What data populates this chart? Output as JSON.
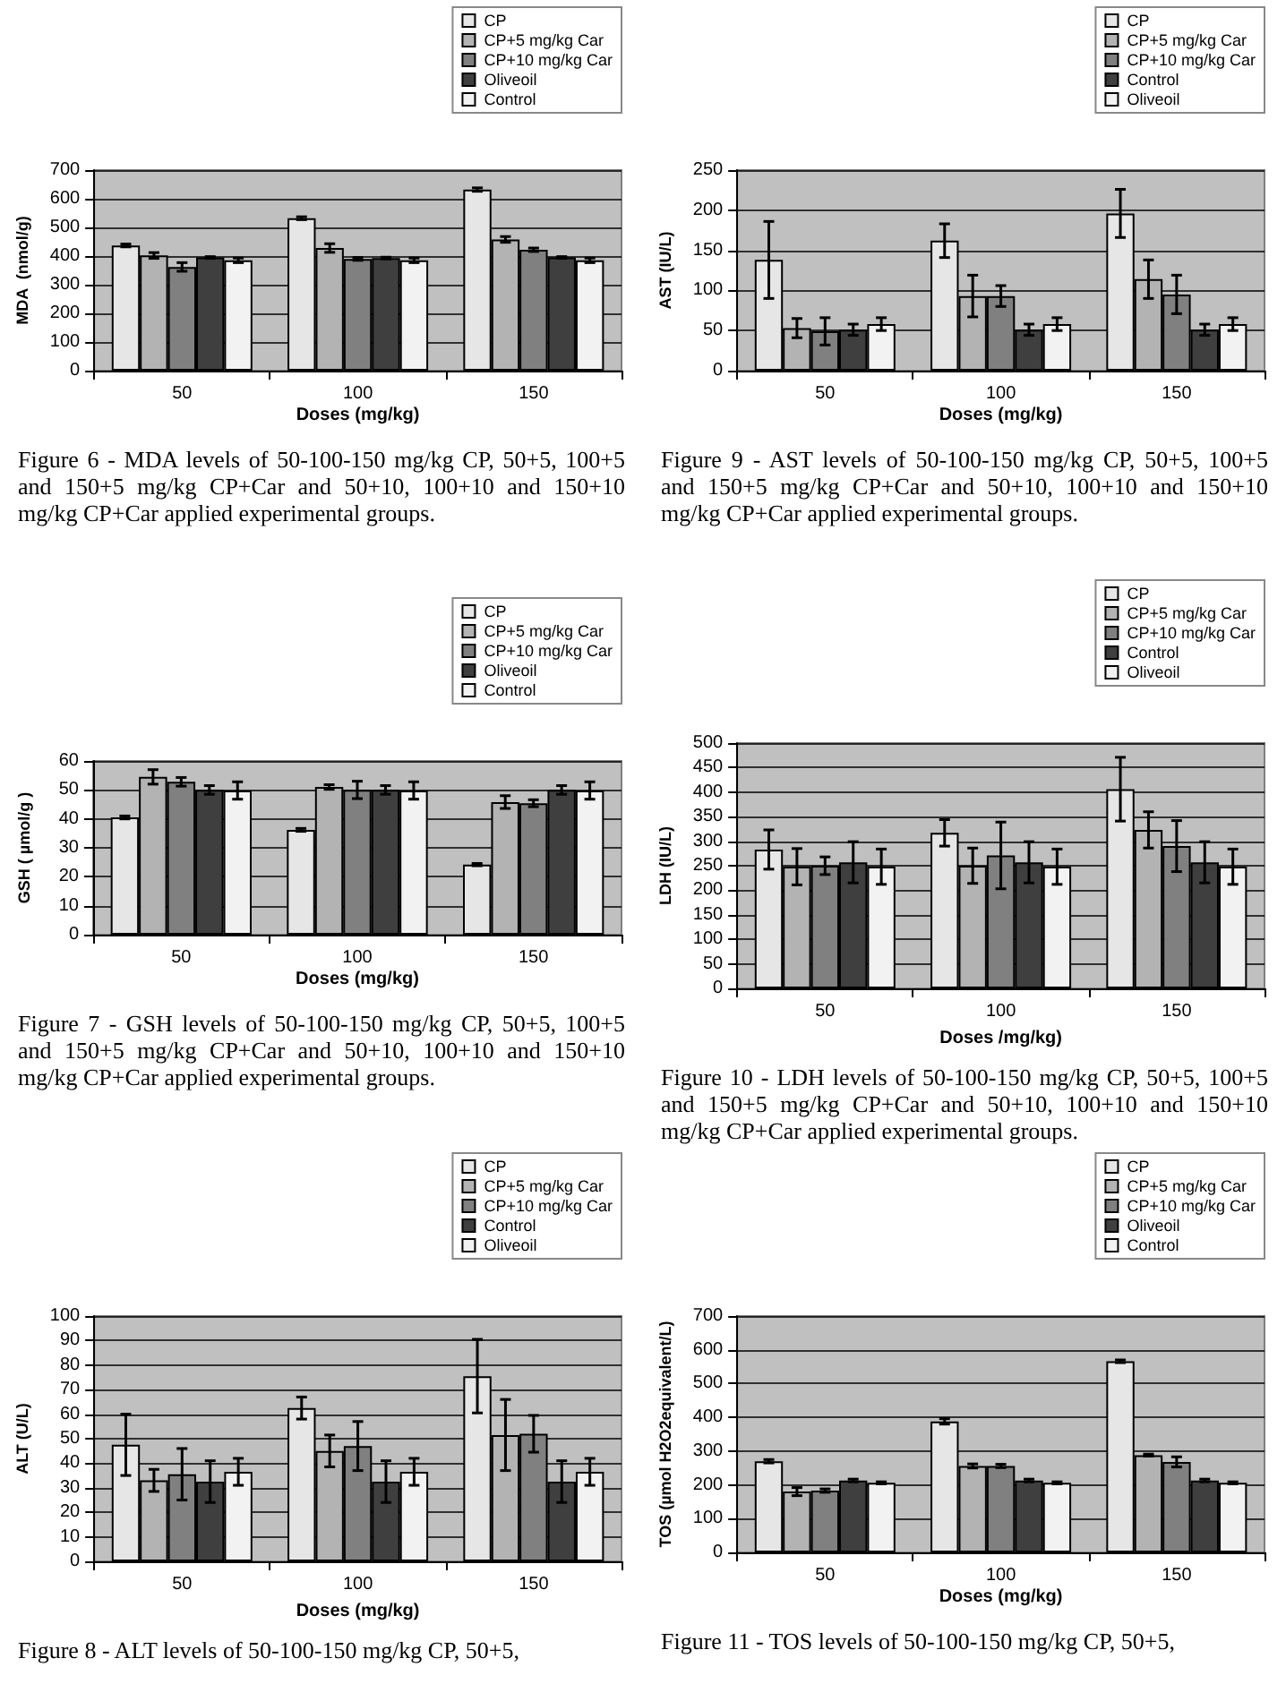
{
  "chart_data": [
    {
      "type": "bar",
      "categories": [
        "50",
        "100",
        "150"
      ],
      "xlabel": "Doses (mg/kg)",
      "ylabel": "MDA  (nmol/g)",
      "ylim": [
        0,
        700
      ],
      "yticks": [
        0,
        100,
        200,
        300,
        400,
        500,
        600,
        700
      ],
      "grid": "y",
      "legend": "top right",
      "annotations": [
        "Figure 6 - MDA levels of 50-100-150 mg/kg CP, 50+5, 100+5 and 150+5 mg/kg CP+Car and 50+10, 100+10 and 150+10 mg/kg CP+Car applied  experimental groups."
      ],
      "series": [
        {
          "name": "CP",
          "color": "#e6e6e6",
          "values": [
            437,
            532,
            632
          ],
          "errors": [
            5,
            5,
            6
          ]
        },
        {
          "name": "CP+5 mg/kg Car",
          "color": "#b3b3b3",
          "values": [
            402,
            428,
            458
          ],
          "errors": [
            10,
            15,
            10
          ]
        },
        {
          "name": "CP+10 mg/kg Car",
          "color": "#808080",
          "values": [
            362,
            390,
            422
          ],
          "errors": [
            15,
            5,
            6
          ]
        },
        {
          "name": "Oliveoil",
          "color": "#3f3f3f",
          "values": [
            395,
            393,
            395
          ],
          "errors": [
            3,
            3,
            3
          ]
        },
        {
          "name": "Control",
          "color": "#f2f2f2",
          "values": [
            385,
            385,
            385
          ],
          "errors": [
            8,
            8,
            8
          ]
        }
      ]
    },
    {
      "type": "bar",
      "categories": [
        "50",
        "100",
        "150"
      ],
      "xlabel": "Doses (mg/kg)",
      "ylabel": "AST (IU/L)",
      "ylim": [
        0,
        250
      ],
      "yticks": [
        0,
        50,
        100,
        150,
        200,
        250
      ],
      "grid": "y",
      "legend": "top right",
      "annotations": [
        "Figure 9 - AST levels of 50-100-150 mg/kg CP, 50+5, 100+5 and 150+5 mg/kg CP+Car and 50+10, 100+10 and 150+10 mg/kg CP+Car applied experimental groups."
      ],
      "series": [
        {
          "name": "CP",
          "color": "#e6e6e6",
          "values": [
            138,
            162,
            196
          ],
          "errors": [
            48,
            21,
            30
          ]
        },
        {
          "name": "CP+5 mg/kg Car",
          "color": "#b3b3b3",
          "values": [
            53,
            93,
            114
          ],
          "errors": [
            12,
            26,
            24
          ]
        },
        {
          "name": "CP+10 mg/kg Car",
          "color": "#808080",
          "values": [
            49,
            93,
            95
          ],
          "errors": [
            17,
            13,
            24
          ]
        },
        {
          "name": "Control",
          "color": "#3f3f3f",
          "values": [
            51,
            51,
            51
          ],
          "errors": [
            7,
            7,
            7
          ]
        },
        {
          "name": "Oliveoil",
          "color": "#f2f2f2",
          "values": [
            58,
            58,
            58
          ],
          "errors": [
            8,
            8,
            8
          ]
        }
      ]
    },
    {
      "type": "bar",
      "categories": [
        "50",
        "100",
        "150"
      ],
      "xlabel": "Doses (mg/kg)",
      "ylabel": "GSH ( µmol/g )",
      "ylim": [
        0,
        60
      ],
      "yticks": [
        0,
        10,
        20,
        30,
        40,
        50,
        60
      ],
      "grid": "y",
      "legend": "top right",
      "annotations": [
        "Figure 7 - GSH levels of 50-100-150 mg/kg CP, 50+5, 100+5 and 150+5 mg/kg CP+Car and 50+10, 100+10 and 150+10 mg/kg CP+Car applied experimental groups."
      ],
      "series": [
        {
          "name": "CP",
          "color": "#e6e6e6",
          "values": [
            40.5,
            36.2,
            24.2
          ],
          "errors": [
            0.5,
            0.5,
            0.4
          ]
        },
        {
          "name": "CP+5 mg/kg Car",
          "color": "#b3b3b3",
          "values": [
            54.5,
            51,
            45.8
          ],
          "errors": [
            2.5,
            0.8,
            2.2
          ]
        },
        {
          "name": "CP+10 mg/kg Car",
          "color": "#808080",
          "values": [
            52.8,
            50,
            45.4
          ],
          "errors": [
            1.5,
            3,
            1.2
          ]
        },
        {
          "name": "Oliveoil",
          "color": "#3f3f3f",
          "values": [
            50,
            50,
            50
          ],
          "errors": [
            1.5,
            1.5,
            1.5
          ]
        },
        {
          "name": "Control",
          "color": "#f2f2f2",
          "values": [
            49.8,
            49.8,
            49.8
          ],
          "errors": [
            3,
            3,
            3
          ]
        }
      ]
    },
    {
      "type": "bar",
      "categories": [
        "50",
        "100",
        "150"
      ],
      "xlabel": "Doses /mg/kg)",
      "ylabel": "LDH (IU/L)",
      "ylim": [
        0,
        500
      ],
      "yticks": [
        0,
        50,
        100,
        150,
        200,
        250,
        300,
        350,
        400,
        450,
        500
      ],
      "grid": "y",
      "legend": "top right",
      "annotations": [
        "Figure  10 - LDH levels of 50-100-150 mg/kg CP, 50+5, 100+5 and 150+5 mg/kg CP+Car and 50+10, 100+10 and 150+10 mg/kg CP+Car applied experimental groups."
      ],
      "series": [
        {
          "name": "CP",
          "color": "#e6e6e6",
          "values": [
            283,
            317,
            406
          ],
          "errors": [
            40,
            27,
            65
          ]
        },
        {
          "name": "CP+5 mg/kg Car",
          "color": "#b3b3b3",
          "values": [
            248,
            250,
            323
          ],
          "errors": [
            37,
            36,
            37
          ]
        },
        {
          "name": "CP+10 mg/kg Car",
          "color": "#808080",
          "values": [
            250,
            271,
            290
          ],
          "errors": [
            18,
            68,
            52
          ]
        },
        {
          "name": "Control",
          "color": "#3f3f3f",
          "values": [
            257,
            257,
            257
          ],
          "errors": [
            42,
            42,
            42
          ]
        },
        {
          "name": "Oliveoil",
          "color": "#f2f2f2",
          "values": [
            248,
            248,
            248
          ],
          "errors": [
            36,
            36,
            36
          ]
        }
      ]
    },
    {
      "type": "bar",
      "categories": [
        "50",
        "100",
        "150"
      ],
      "xlabel": "Doses (mg/kg)",
      "ylabel": "ALT (U/L)",
      "ylim": [
        0,
        100
      ],
      "yticks": [
        0,
        10,
        20,
        30,
        40,
        50,
        60,
        70,
        80,
        90,
        100
      ],
      "grid": "y",
      "legend": "top right",
      "annotations": [
        "Figure 8 - ALT levels of 50-100-150 mg/kg CP, 50+5,"
      ],
      "series": [
        {
          "name": "CP",
          "color": "#e6e6e6",
          "values": [
            47.5,
            62.5,
            75.5
          ],
          "errors": [
            12.5,
            4.5,
            15
          ]
        },
        {
          "name": "CP+5 mg/kg Car",
          "color": "#b3b3b3",
          "values": [
            33,
            45,
            51.5
          ],
          "errors": [
            4.5,
            6.5,
            14.5
          ]
        },
        {
          "name": "CP+10 mg/kg Car",
          "color": "#808080",
          "values": [
            35.5,
            47,
            52
          ],
          "errors": [
            10.5,
            10,
            7.5
          ]
        },
        {
          "name": "Control",
          "color": "#3f3f3f",
          "values": [
            32.5,
            32.5,
            32.5
          ],
          "errors": [
            8.5,
            8.5,
            8.5
          ]
        },
        {
          "name": "Oliveoil",
          "color": "#f2f2f2",
          "values": [
            36.5,
            36.5,
            36.5
          ],
          "errors": [
            5.5,
            5.5,
            5.5
          ]
        }
      ]
    },
    {
      "type": "bar",
      "categories": [
        "50",
        "100",
        "150"
      ],
      "xlabel": "Doses (mg/kg)",
      "ylabel": "TOS (µmol H2O2equivalent/L)",
      "ylim": [
        0,
        700
      ],
      "yticks": [
        0,
        100,
        200,
        300,
        400,
        500,
        600,
        700
      ],
      "grid": "y",
      "legend": "top right",
      "annotations": [
        "Figure 11 - TOS levels of 50-100-150 mg/kg CP, 50+5,"
      ],
      "series": [
        {
          "name": "CP",
          "color": "#e6e6e6",
          "values": [
            270,
            388,
            566
          ],
          "errors": [
            5,
            8,
            4
          ]
        },
        {
          "name": "CP+5 mg/kg Car",
          "color": "#b3b3b3",
          "values": [
            180,
            256,
            288
          ],
          "errors": [
            12,
            6,
            3
          ]
        },
        {
          "name": "CP+10 mg/kg Car",
          "color": "#808080",
          "values": [
            183,
            256,
            268
          ],
          "errors": [
            5,
            5,
            15
          ]
        },
        {
          "name": "Oliveoil",
          "color": "#3f3f3f",
          "values": [
            213,
            213,
            213
          ],
          "errors": [
            4,
            4,
            4
          ]
        },
        {
          "name": "Control",
          "color": "#f2f2f2",
          "values": [
            206,
            206,
            206
          ],
          "errors": [
            3,
            3,
            3
          ]
        }
      ]
    }
  ]
}
